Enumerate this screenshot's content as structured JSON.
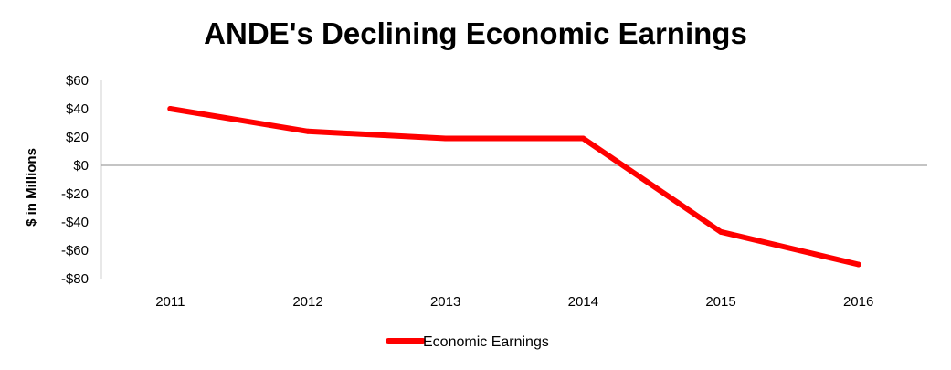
{
  "chart_data": {
    "type": "line",
    "title": "ANDE's Declining Economic Earnings",
    "xlabel": "",
    "ylabel": "$ in Millions",
    "categories": [
      "2011",
      "2012",
      "2013",
      "2014",
      "2015",
      "2016"
    ],
    "series": [
      {
        "name": "Economic Earnings",
        "values": [
          40,
          24,
          19,
          19,
          -47,
          -70
        ],
        "color": "#ff0000"
      }
    ],
    "ylim": [
      -80,
      60
    ],
    "yticks": [
      60,
      40,
      20,
      0,
      -20,
      -40,
      -60,
      -80
    ],
    "ytick_labels": [
      "$60",
      "$40",
      "$20",
      "$0",
      "-$20",
      "-$40",
      "-$60",
      "-$80"
    ],
    "grid": false,
    "zero_line": true,
    "legend_position": "bottom"
  }
}
